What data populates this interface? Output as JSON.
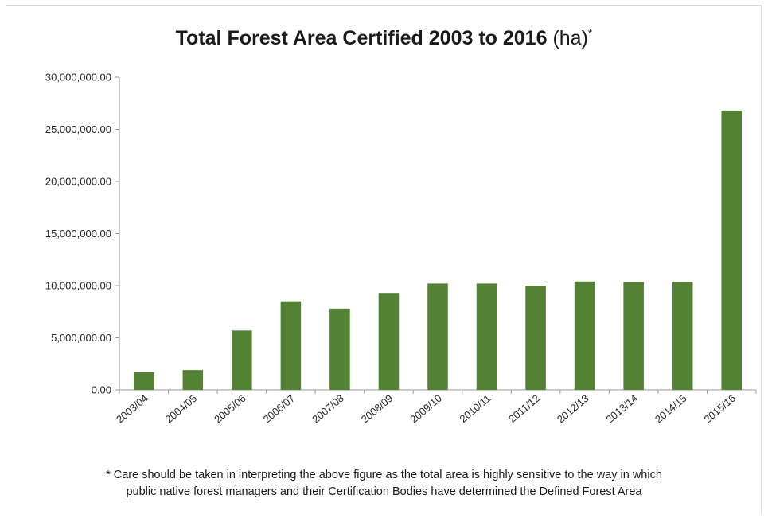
{
  "chart_data": {
    "type": "bar",
    "title": "Total Forest Area Certified 2003 to 2016",
    "title_unit": "(ha)",
    "title_marker": "*",
    "categories": [
      "2003/04",
      "2004/05",
      "2005/06",
      "2006/07",
      "2007/08",
      "2008/09",
      "2009/10",
      "2010/11",
      "2011/12",
      "2012/13",
      "2013/14",
      "2014/15",
      "2015/16"
    ],
    "values": [
      1700000,
      1900000,
      5700000,
      8500000,
      7800000,
      9300000,
      10200000,
      10200000,
      10000000,
      10400000,
      10350000,
      10350000,
      26800000
    ],
    "ylim": [
      0,
      30000000
    ],
    "yticks": [
      0,
      5000000,
      10000000,
      15000000,
      20000000,
      25000000,
      30000000
    ],
    "ytick_labels": [
      "0.00",
      "5,000,000.00",
      "10,000,000.00",
      "15,000,000.00",
      "20,000,000.00",
      "25,000,000.00",
      "30,000,000.00"
    ],
    "xlabel": "",
    "ylabel": "",
    "grid": false,
    "legend": "none",
    "bar_color": "#548235",
    "footnote_lines": [
      "* Care should be taken in interpreting the above figure as the total area is highly sensitive to the way in which",
      "public native forest managers and their Certification Bodies have determined the Defined Forest Area"
    ]
  }
}
